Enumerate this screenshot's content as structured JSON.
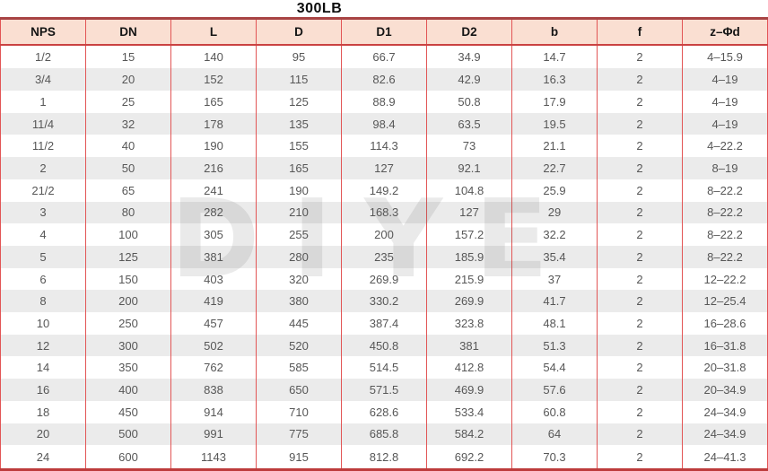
{
  "title": "300LB",
  "watermark": "DIYE",
  "colors": {
    "grid_red": "#e25555",
    "frame_dark_red": "#a84444",
    "header_bg": "#fadfd2",
    "row_alt_bg": "#ebebeb",
    "header_text": "#141414",
    "cell_text": "#575757"
  },
  "table": {
    "columns": [
      "NPS",
      "DN",
      "L",
      "D",
      "D1",
      "D2",
      "b",
      "f",
      "z–Φd"
    ],
    "rows": [
      [
        "1/2",
        "15",
        "140",
        "95",
        "66.7",
        "34.9",
        "14.7",
        "2",
        "4–15.9"
      ],
      [
        "3/4",
        "20",
        "152",
        "115",
        "82.6",
        "42.9",
        "16.3",
        "2",
        "4–19"
      ],
      [
        "1",
        "25",
        "165",
        "125",
        "88.9",
        "50.8",
        "17.9",
        "2",
        "4–19"
      ],
      [
        "11/4",
        "32",
        "178",
        "135",
        "98.4",
        "63.5",
        "19.5",
        "2",
        "4–19"
      ],
      [
        "11/2",
        "40",
        "190",
        "155",
        "114.3",
        "73",
        "21.1",
        "2",
        "4–22.2"
      ],
      [
        "2",
        "50",
        "216",
        "165",
        "127",
        "92.1",
        "22.7",
        "2",
        "8–19"
      ],
      [
        "21/2",
        "65",
        "241",
        "190",
        "149.2",
        "104.8",
        "25.9",
        "2",
        "8–22.2"
      ],
      [
        "3",
        "80",
        "282",
        "210",
        "168.3",
        "127",
        "29",
        "2",
        "8–22.2"
      ],
      [
        "4",
        "100",
        "305",
        "255",
        "200",
        "157.2",
        "32.2",
        "2",
        "8–22.2"
      ],
      [
        "5",
        "125",
        "381",
        "280",
        "235",
        "185.9",
        "35.4",
        "2",
        "8–22.2"
      ],
      [
        "6",
        "150",
        "403",
        "320",
        "269.9",
        "215.9",
        "37",
        "2",
        "12–22.2"
      ],
      [
        "8",
        "200",
        "419",
        "380",
        "330.2",
        "269.9",
        "41.7",
        "2",
        "12–25.4"
      ],
      [
        "10",
        "250",
        "457",
        "445",
        "387.4",
        "323.8",
        "48.1",
        "2",
        "16–28.6"
      ],
      [
        "12",
        "300",
        "502",
        "520",
        "450.8",
        "381",
        "51.3",
        "2",
        "16–31.8"
      ],
      [
        "14",
        "350",
        "762",
        "585",
        "514.5",
        "412.8",
        "54.4",
        "2",
        "20–31.8"
      ],
      [
        "16",
        "400",
        "838",
        "650",
        "571.5",
        "469.9",
        "57.6",
        "2",
        "20–34.9"
      ],
      [
        "18",
        "450",
        "914",
        "710",
        "628.6",
        "533.4",
        "60.8",
        "2",
        "24–34.9"
      ],
      [
        "20",
        "500",
        "991",
        "775",
        "685.8",
        "584.2",
        "64",
        "2",
        "24–34.9"
      ],
      [
        "24",
        "600",
        "1143",
        "915",
        "812.8",
        "692.2",
        "70.3",
        "2",
        "24–41.3"
      ]
    ]
  }
}
